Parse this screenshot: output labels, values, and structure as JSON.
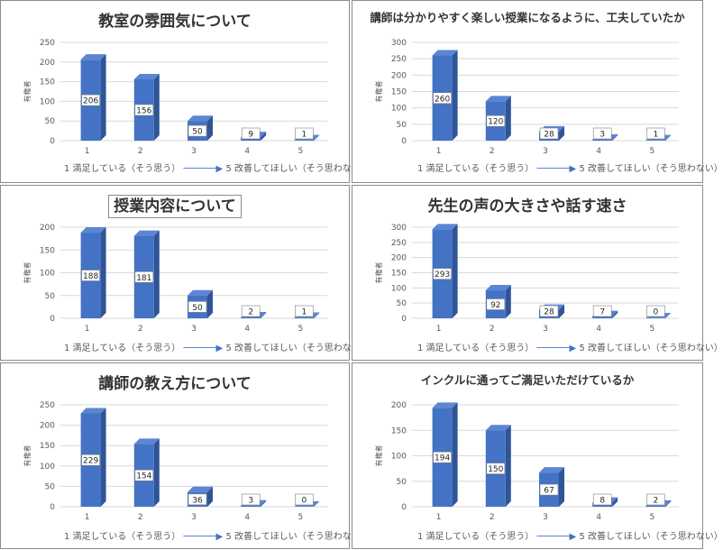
{
  "footer": {
    "left": "1 満足している（そう思う）",
    "arrow": "──────▶",
    "right": "5 改善してほしい（そう思わない）"
  },
  "colors": {
    "bar_front": "#4472c4",
    "bar_side": "#2f5597",
    "bar_top": "#5b86d4",
    "grid": "#d9d9d9",
    "axis": "#595959"
  },
  "chart_data": [
    {
      "type": "bar",
      "title": "教室の雰囲気について",
      "ylabel": "有権者",
      "xlabel": "",
      "categories": [
        "1",
        "2",
        "3",
        "4",
        "5"
      ],
      "values": [
        206,
        156,
        50,
        9,
        1
      ],
      "yticks": [
        0,
        50,
        100,
        150,
        200,
        250
      ],
      "ylim": [
        0,
        250
      ]
    },
    {
      "type": "bar",
      "title": "講師は分かりやすく楽しい授業になるように、工夫していたか",
      "ylabel": "有権者",
      "xlabel": "",
      "categories": [
        "1",
        "2",
        "3",
        "4",
        "5"
      ],
      "values": [
        260,
        120,
        28,
        3,
        1
      ],
      "yticks": [
        0,
        50,
        100,
        150,
        200,
        250,
        300
      ],
      "ylim": [
        0,
        300
      ]
    },
    {
      "type": "bar",
      "title": "授業内容について",
      "ylabel": "有権者",
      "xlabel": "",
      "categories": [
        "1",
        "2",
        "3",
        "4",
        "5"
      ],
      "values": [
        188,
        181,
        50,
        2,
        1
      ],
      "yticks": [
        0,
        50,
        100,
        150,
        200
      ],
      "ylim": [
        0,
        200
      ]
    },
    {
      "type": "bar",
      "title": "先生の声の大きさや話す速さ",
      "ylabel": "有権者",
      "xlabel": "",
      "categories": [
        "1",
        "2",
        "3",
        "4",
        "5"
      ],
      "values": [
        293,
        92,
        28,
        7,
        0
      ],
      "yticks": [
        0,
        50,
        100,
        150,
        200,
        250,
        300
      ],
      "ylim": [
        0,
        300
      ]
    },
    {
      "type": "bar",
      "title": "講師の教え方について",
      "ylabel": "有権者",
      "xlabel": "",
      "categories": [
        "1",
        "2",
        "3",
        "4",
        "5"
      ],
      "values": [
        229,
        154,
        36,
        3,
        0
      ],
      "yticks": [
        0,
        50,
        100,
        150,
        200,
        250
      ],
      "ylim": [
        0,
        250
      ]
    },
    {
      "type": "bar",
      "title": "インクルに通ってご満足いただけているか",
      "ylabel": "有権者",
      "xlabel": "",
      "categories": [
        "1",
        "2",
        "3",
        "4",
        "5"
      ],
      "values": [
        194,
        150,
        67,
        8,
        2
      ],
      "yticks": [
        0,
        50,
        100,
        150,
        200
      ],
      "ylim": [
        0,
        200
      ]
    }
  ]
}
